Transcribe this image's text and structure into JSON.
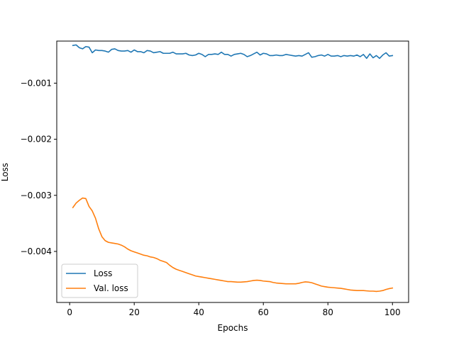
{
  "chart_data": {
    "type": "line",
    "title": "",
    "xlabel": "Epochs",
    "ylabel": "Loss",
    "xlim": [
      -4,
      105
    ],
    "ylim": [
      -0.00491,
      -0.00025
    ],
    "xticks": [
      0,
      20,
      40,
      60,
      80,
      100
    ],
    "xtick_labels": [
      "0",
      "20",
      "40",
      "60",
      "80",
      "100"
    ],
    "yticks": [
      -0.001,
      -0.002,
      -0.003,
      -0.004
    ],
    "ytick_labels": [
      "−0.001",
      "−0.002",
      "−0.003",
      "−0.004"
    ],
    "grid": false,
    "legend_position": "lower-left",
    "x": [
      1,
      2,
      3,
      4,
      5,
      6,
      7,
      8,
      9,
      10,
      11,
      12,
      13,
      14,
      15,
      16,
      17,
      18,
      19,
      20,
      21,
      22,
      23,
      24,
      25,
      26,
      27,
      28,
      29,
      30,
      31,
      32,
      33,
      34,
      35,
      36,
      37,
      38,
      39,
      40,
      41,
      42,
      43,
      44,
      45,
      46,
      47,
      48,
      49,
      50,
      51,
      52,
      53,
      54,
      55,
      56,
      57,
      58,
      59,
      60,
      61,
      62,
      63,
      64,
      65,
      66,
      67,
      68,
      69,
      70,
      71,
      72,
      73,
      74,
      75,
      76,
      77,
      78,
      79,
      80,
      81,
      82,
      83,
      84,
      85,
      86,
      87,
      88,
      89,
      90,
      91,
      92,
      93,
      94,
      95,
      96,
      97,
      98,
      99,
      100
    ],
    "series": [
      {
        "name": "Loss",
        "color": "#1f77b4",
        "values": [
          -0.000328,
          -0.000318,
          -0.000368,
          -0.000388,
          -0.000348,
          -0.000358,
          -0.000458,
          -0.000408,
          -0.000418,
          -0.000418,
          -0.000428,
          -0.000448,
          -0.000398,
          -0.000388,
          -0.000418,
          -0.000428,
          -0.000428,
          -0.000418,
          -0.000448,
          -0.000408,
          -0.000438,
          -0.000438,
          -0.000458,
          -0.000418,
          -0.000428,
          -0.000458,
          -0.000448,
          -0.000438,
          -0.000468,
          -0.000468,
          -0.000468,
          -0.000448,
          -0.000478,
          -0.000478,
          -0.000478,
          -0.000468,
          -0.000498,
          -0.000508,
          -0.000498,
          -0.000468,
          -0.000488,
          -0.000528,
          -0.000488,
          -0.000488,
          -0.000478,
          -0.000488,
          -0.000448,
          -0.000488,
          -0.000488,
          -0.000518,
          -0.000488,
          -0.000478,
          -0.000468,
          -0.000488,
          -0.000528,
          -0.000508,
          -0.000478,
          -0.000448,
          -0.000498,
          -0.000468,
          -0.000478,
          -0.000508,
          -0.000508,
          -0.000498,
          -0.000508,
          -0.000508,
          -0.000488,
          -0.000498,
          -0.000508,
          -0.000518,
          -0.000508,
          -0.000518,
          -0.000488,
          -0.000458,
          -0.000538,
          -0.000528,
          -0.000508,
          -0.000498,
          -0.000518,
          -0.000488,
          -0.000518,
          -0.000518,
          -0.000508,
          -0.000528,
          -0.000508,
          -0.000518,
          -0.000508,
          -0.000518,
          -0.000498,
          -0.000528,
          -0.000488,
          -0.000558,
          -0.000478,
          -0.000548,
          -0.000508,
          -0.000558,
          -0.000498,
          -0.000458,
          -0.000518,
          -0.000508
        ],
        "values_note": ""
      },
      {
        "name": "Val. loss",
        "color": "#ff7f0e",
        "values": [
          -0.003218,
          -0.003138,
          -0.003088,
          -0.003048,
          -0.003058,
          -0.003198,
          -0.003278,
          -0.003408,
          -0.003598,
          -0.003738,
          -0.003808,
          -0.003838,
          -0.003848,
          -0.003858,
          -0.003868,
          -0.003888,
          -0.003918,
          -0.003958,
          -0.003988,
          -0.004008,
          -0.004028,
          -0.004048,
          -0.004068,
          -0.004078,
          -0.004098,
          -0.004108,
          -0.004128,
          -0.004158,
          -0.004178,
          -0.004198,
          -0.004248,
          -0.004288,
          -0.004318,
          -0.004338,
          -0.004358,
          -0.004378,
          -0.004398,
          -0.004418,
          -0.004438,
          -0.004448,
          -0.004458,
          -0.004468,
          -0.004478,
          -0.004488,
          -0.004498,
          -0.004508,
          -0.004518,
          -0.004528,
          -0.004538,
          -0.004538,
          -0.004543,
          -0.004548,
          -0.004548,
          -0.004543,
          -0.004538,
          -0.004528,
          -0.004518,
          -0.004513,
          -0.004518,
          -0.004528,
          -0.004533,
          -0.004538,
          -0.004553,
          -0.004563,
          -0.004568,
          -0.004573,
          -0.004578,
          -0.004578,
          -0.004578,
          -0.004578,
          -0.004568,
          -0.004553,
          -0.004543,
          -0.004548,
          -0.004558,
          -0.004578,
          -0.004598,
          -0.004618,
          -0.004628,
          -0.004638,
          -0.004643,
          -0.004648,
          -0.004653,
          -0.004658,
          -0.004668,
          -0.004678,
          -0.004688,
          -0.004693,
          -0.004698,
          -0.004698,
          -0.004698,
          -0.004703,
          -0.004708,
          -0.004708,
          -0.004713,
          -0.004708,
          -0.004698,
          -0.004678,
          -0.004663,
          -0.004653
        ]
      }
    ]
  }
}
